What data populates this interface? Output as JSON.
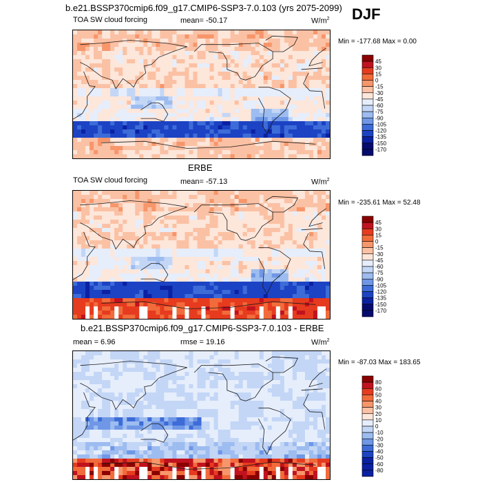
{
  "season": "DJF",
  "palette_main": [
    "#8b0000",
    "#c1121f",
    "#e63b1f",
    "#f26b3a",
    "#f7966b",
    "#fbc1a4",
    "#fde6da",
    "#e6eefc",
    "#c3d6f6",
    "#9dbcf0",
    "#6f97e6",
    "#3d6cd8",
    "#1c43c4",
    "#0b21a3",
    "#060c6e"
  ],
  "palette_diff": [
    "#8b0000",
    "#c1121f",
    "#e63b1f",
    "#f26b3a",
    "#f7966b",
    "#fbc1a4",
    "#fde6da",
    "#e6eefc",
    "#c3d6f6",
    "#9dbcf0",
    "#6f97e6",
    "#3d6cd8",
    "#1c43c4",
    "#0b21a3"
  ],
  "colors": {
    "land_line": "#1a1a1a",
    "missing": "#ffffff"
  },
  "chart_data": [
    {
      "type": "heatmap",
      "id": "model",
      "title": "b.e21.BSSP370cmip6.f09_g17.CMIP6-SSP3-7.0.103 (yrs 2075-2099)",
      "left_label": "TOA SW cloud forcing",
      "center_label": "mean= -50.17",
      "units": "W/m",
      "units_sup": "2",
      "minmax": "Min = -177.68 Max =  0.00",
      "colorbar_levels": [
        "45",
        "30",
        "15",
        "0",
        "-15",
        "-30",
        "-45",
        "-60",
        "-75",
        "-90",
        "-105",
        "-120",
        "-135",
        "-150",
        "-170"
      ],
      "field": "model"
    },
    {
      "type": "heatmap",
      "id": "obs",
      "title": "ERBE",
      "left_label": "TOA SW cloud forcing",
      "center_label": "mean= -57.13",
      "units": "W/m",
      "units_sup": "2",
      "minmax": "Min = -235.61 Max =  52.48",
      "colorbar_levels": [
        "45",
        "30",
        "15",
        "0",
        "-15",
        "-30",
        "-45",
        "-60",
        "-75",
        "-90",
        "-105",
        "-120",
        "-135",
        "-150",
        "-170"
      ],
      "field": "obs"
    },
    {
      "type": "heatmap",
      "id": "diff",
      "title": "b.e21.BSSP370cmip6.f09_g17.CMIP6-SSP3-7.0.103 - ERBE",
      "left_label": "mean =   6.96",
      "center_label": "rmse =  19.16",
      "units": "W/m",
      "units_sup": "2",
      "minmax": "Min = -87.03 Max = 183.65",
      "colorbar_levels": [
        "80",
        "60",
        "50",
        "40",
        "30",
        "20",
        "10",
        "0",
        "-10",
        "-20",
        "-30",
        "-40",
        "-50",
        "-60",
        "-80"
      ],
      "field": "diff"
    }
  ]
}
